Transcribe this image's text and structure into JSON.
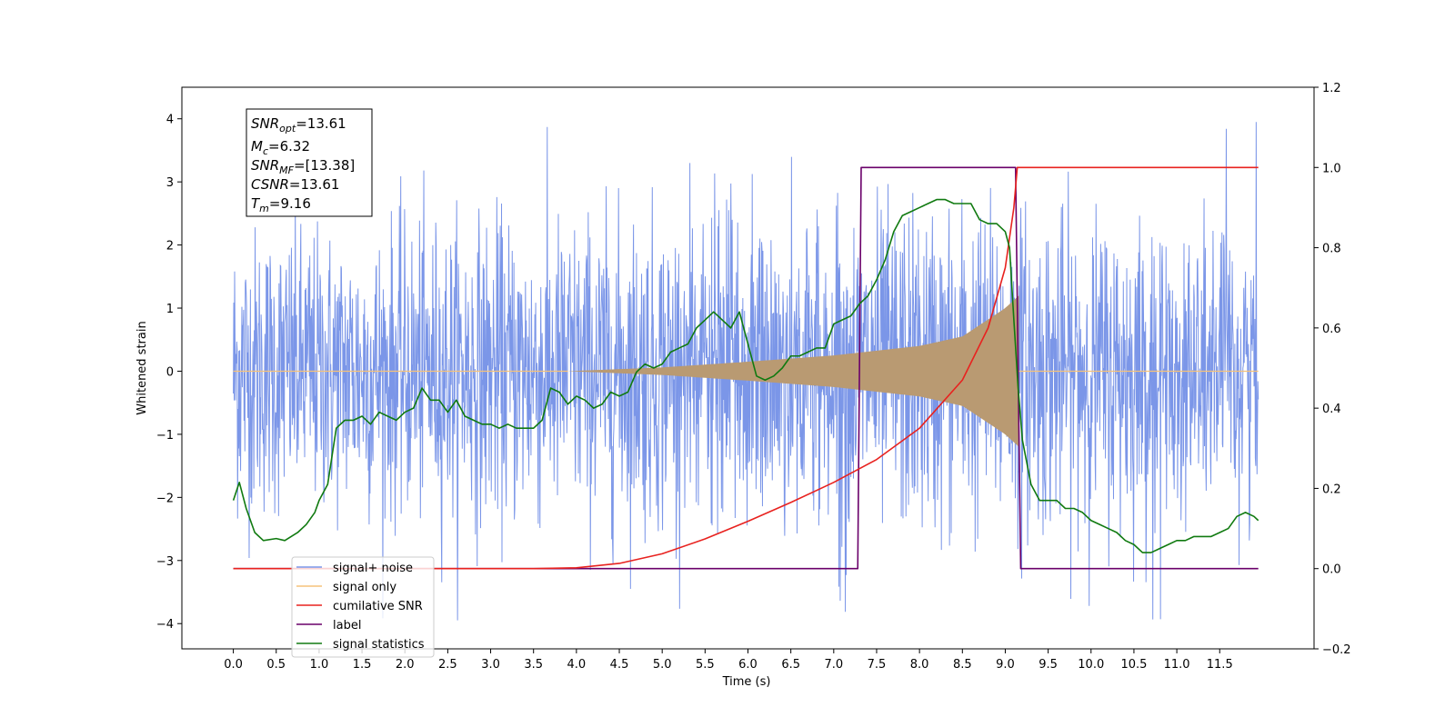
{
  "chart_data": {
    "type": "line",
    "title": "",
    "xlabel": "Time (s)",
    "ylabel": "Whitened strain",
    "y2label": "",
    "xlim": [
      -0.6,
      12.6
    ],
    "ylim": [
      -4.4,
      4.5
    ],
    "y2lim": [
      -0.2,
      1.2
    ],
    "x_ticks": [
      "0.0",
      "0.5",
      "1.0",
      "1.5",
      "2.0",
      "2.5",
      "3.0",
      "3.5",
      "4.0",
      "4.5",
      "5.0",
      "5.5",
      "6.0",
      "6.5",
      "7.0",
      "7.5",
      "8.0",
      "8.5",
      "9.0",
      "9.5",
      "10.0",
      "10.5",
      "11.0",
      "11.5"
    ],
    "y_ticks": [
      "4",
      "3",
      "2",
      "1",
      "0",
      "−1",
      "−2",
      "−3",
      "−4"
    ],
    "y2_ticks": [
      "1.2",
      "1.0",
      "0.8",
      "0.6",
      "0.4",
      "0.2",
      "0.0",
      "−0.2"
    ],
    "grid": false,
    "legend_position": "lower-left",
    "annotation": {
      "snr_opt": {
        "base": "SNR",
        "sub": "opt",
        "value": "=13.61"
      },
      "mc": {
        "base": "M",
        "sub": "c",
        "value": "=6.32"
      },
      "snr_mf": {
        "base": "SNR",
        "sub": "MF",
        "value": "=[13.38]"
      },
      "csnr": {
        "base": "CSNR",
        "value": "=13.61"
      },
      "tm": {
        "base": "T",
        "sub": "m",
        "value": "=9.16"
      }
    },
    "series": [
      {
        "name": "signal+ noise",
        "color": "#7b96e8",
        "axis": "left",
        "envelope": {
          "x": [
            0,
            1,
            2,
            3,
            4,
            5,
            6,
            7,
            8,
            9,
            10,
            11,
            12
          ],
          "upper": [
            2.5,
            2.4,
            2.5,
            2.6,
            2.6,
            2.7,
            2.7,
            2.7,
            2.8,
            2.8,
            2.6,
            2.6,
            2.6
          ],
          "lower": [
            -2.4,
            -2.4,
            -2.5,
            -2.6,
            -2.6,
            -2.7,
            -2.7,
            -2.7,
            -2.8,
            -2.8,
            -2.6,
            -2.6,
            -2.6
          ],
          "max_peak": 4.1,
          "min_peak": -4.0
        }
      },
      {
        "name": "signal only",
        "color": "#f5c27a",
        "axis": "left",
        "chirp": {
          "start": 3.9,
          "end": 9.16,
          "amplitude": {
            "x": [
              3.9,
              5.0,
              6.0,
              7.0,
              8.0,
              8.5,
              9.0,
              9.16
            ],
            "value": [
              0.0,
              0.06,
              0.15,
              0.25,
              0.4,
              0.55,
              1.0,
              1.2
            ]
          }
        },
        "fill_color": "#b99a72"
      },
      {
        "name": "cumilative SNR",
        "color": "#e8221f",
        "axis": "right",
        "x": [
          0.0,
          3.5,
          4.0,
          4.5,
          5.0,
          5.5,
          6.0,
          6.5,
          7.0,
          7.5,
          8.0,
          8.5,
          8.8,
          9.0,
          9.1,
          9.14,
          9.2,
          11.95
        ],
        "y": [
          0.0,
          0.0,
          0.002,
          0.013,
          0.037,
          0.074,
          0.118,
          0.165,
          0.215,
          0.272,
          0.35,
          0.47,
          0.6,
          0.75,
          0.9,
          1.0,
          1.0,
          1.0
        ]
      },
      {
        "name": "label",
        "color": "#6a006a",
        "axis": "right",
        "x": [
          0.0,
          7.28,
          7.32,
          9.12,
          9.18,
          11.95
        ],
        "y": [
          0.0,
          0.0,
          1.0,
          1.0,
          0.0,
          0.0
        ]
      },
      {
        "name": "signal statistics",
        "color": "#107a10",
        "axis": "right",
        "x": [
          0.0,
          0.07,
          0.15,
          0.25,
          0.35,
          0.5,
          0.6,
          0.75,
          0.85,
          0.95,
          1.0,
          1.1,
          1.2,
          1.3,
          1.4,
          1.5,
          1.6,
          1.7,
          1.8,
          1.9,
          2.0,
          2.1,
          2.2,
          2.3,
          2.4,
          2.5,
          2.6,
          2.7,
          2.8,
          2.9,
          3.0,
          3.1,
          3.2,
          3.3,
          3.4,
          3.5,
          3.6,
          3.7,
          3.8,
          3.9,
          4.0,
          4.1,
          4.2,
          4.3,
          4.4,
          4.5,
          4.6,
          4.7,
          4.8,
          4.9,
          5.0,
          5.1,
          5.2,
          5.3,
          5.4,
          5.5,
          5.6,
          5.7,
          5.8,
          5.9,
          6.0,
          6.1,
          6.2,
          6.3,
          6.4,
          6.5,
          6.6,
          6.7,
          6.8,
          6.9,
          7.0,
          7.1,
          7.2,
          7.3,
          7.4,
          7.5,
          7.6,
          7.7,
          7.8,
          7.9,
          8.0,
          8.1,
          8.2,
          8.3,
          8.4,
          8.5,
          8.6,
          8.7,
          8.8,
          8.9,
          9.0,
          9.05,
          9.1,
          9.15,
          9.2,
          9.3,
          9.4,
          9.5,
          9.6,
          9.7,
          9.8,
          9.9,
          10.0,
          10.1,
          10.2,
          10.3,
          10.4,
          10.5,
          10.6,
          10.7,
          10.8,
          10.9,
          11.0,
          11.1,
          11.2,
          11.3,
          11.4,
          11.5,
          11.6,
          11.7,
          11.8,
          11.9,
          11.95
        ],
        "y": [
          0.17,
          0.215,
          0.15,
          0.09,
          0.07,
          0.075,
          0.07,
          0.09,
          0.11,
          0.14,
          0.17,
          0.21,
          0.35,
          0.37,
          0.37,
          0.38,
          0.36,
          0.39,
          0.38,
          0.37,
          0.39,
          0.4,
          0.45,
          0.42,
          0.42,
          0.39,
          0.42,
          0.38,
          0.37,
          0.36,
          0.36,
          0.35,
          0.36,
          0.35,
          0.35,
          0.35,
          0.37,
          0.45,
          0.44,
          0.41,
          0.43,
          0.42,
          0.4,
          0.41,
          0.44,
          0.43,
          0.44,
          0.49,
          0.51,
          0.5,
          0.51,
          0.54,
          0.55,
          0.56,
          0.6,
          0.62,
          0.64,
          0.62,
          0.6,
          0.64,
          0.56,
          0.48,
          0.47,
          0.48,
          0.5,
          0.53,
          0.53,
          0.54,
          0.55,
          0.55,
          0.61,
          0.62,
          0.63,
          0.66,
          0.68,
          0.72,
          0.77,
          0.84,
          0.88,
          0.89,
          0.9,
          0.91,
          0.92,
          0.92,
          0.91,
          0.91,
          0.91,
          0.87,
          0.86,
          0.86,
          0.84,
          0.8,
          0.62,
          0.45,
          0.32,
          0.21,
          0.17,
          0.17,
          0.17,
          0.15,
          0.15,
          0.14,
          0.12,
          0.11,
          0.1,
          0.09,
          0.07,
          0.06,
          0.04,
          0.04,
          0.05,
          0.06,
          0.07,
          0.07,
          0.08,
          0.08,
          0.08,
          0.09,
          0.1,
          0.13,
          0.14,
          0.13,
          0.12
        ]
      }
    ]
  }
}
